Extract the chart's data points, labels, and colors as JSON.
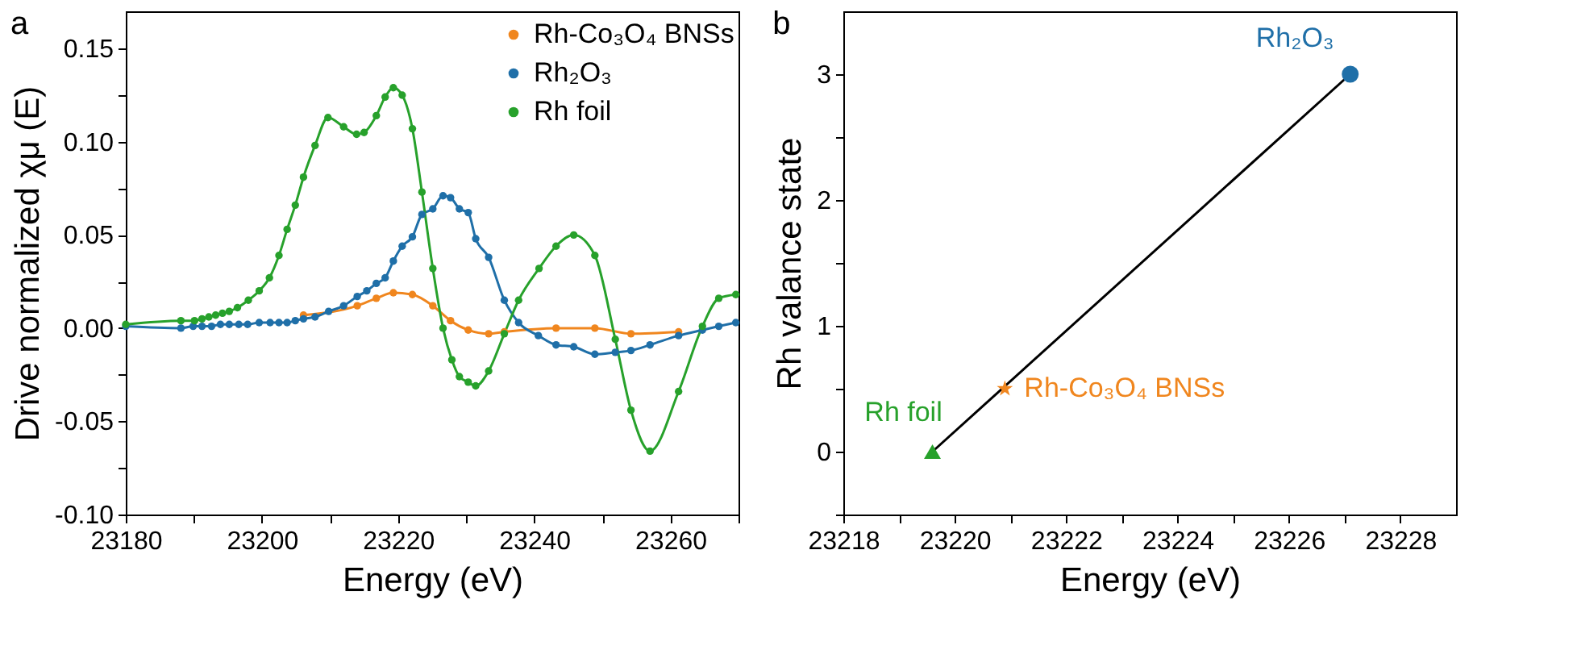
{
  "chart_data": [
    {
      "type": "line",
      "title": "a",
      "xlabel": "Energy (eV)",
      "ylabel": "Drive normalized χμ (E)",
      "xlim": [
        23180,
        23270
      ],
      "ylim": [
        -0.1,
        0.17
      ],
      "marker": "circle",
      "line_style": "solid",
      "legend": "top right",
      "xticks": [
        23180,
        {
          "value": 23190,
          "label": null
        },
        23200,
        {
          "value": 23210,
          "label": null
        },
        23220,
        {
          "value": 23230,
          "label": null
        },
        23240,
        {
          "value": 23250,
          "label": null
        },
        23260,
        {
          "value": 23270,
          "label": null
        }
      ],
      "yticks": [
        {
          "value": -0.1,
          "label": "-0.10"
        },
        {
          "value": -0.075,
          "label": null
        },
        {
          "value": -0.05,
          "label": "-0.05"
        },
        {
          "value": -0.025,
          "label": null
        },
        {
          "value": 0,
          "label": "0.00"
        },
        {
          "value": 0.025,
          "label": null
        },
        {
          "value": 0.05,
          "label": "0.05"
        },
        {
          "value": 0.075,
          "label": null
        },
        {
          "value": 0.1,
          "label": "0.10"
        },
        {
          "value": 0.125,
          "label": null
        },
        {
          "value": 0.15,
          "label": "0.15"
        }
      ],
      "series": [
        {
          "name": "Rh-Co₃O₄ BNSs",
          "color": "#f0861e",
          "x": [
            23206.1,
            23214.0,
            23216.8,
            23219.3,
            23222.1,
            23225.1,
            23227.7,
            23230.3,
            23233.3,
            23235.6,
            23243.2,
            23248.9,
            23254.2,
            23261.2
          ],
          "values": [
            0.007,
            0.012,
            0.016,
            0.019,
            0.018,
            0.012,
            0.004,
            -0.001,
            -0.003,
            -0.002,
            0,
            0,
            -0.003,
            -0.002
          ]
        },
        {
          "name": "Rh₂O₃",
          "color": "#1f6fa8",
          "x": [
            23180,
            23188.1,
            23189.9,
            23191.2,
            23192.6,
            23193.9,
            23195.2,
            23196.6,
            23197.9,
            23199.6,
            23201.2,
            23202.5,
            23203.7,
            23204.9,
            23206.1,
            23207.8,
            23209.8,
            23212.0,
            23214.0,
            23215.4,
            23216.8,
            23218.1,
            23219.3,
            23220.6,
            23222.1,
            23223.5,
            23225.1,
            23226.6,
            23227.7,
            23229.0,
            23230.3,
            23231.4,
            23233.3,
            23235.6,
            23237.7,
            23240.6,
            23243.2,
            23245.8,
            23248.9,
            23251.9,
            23254.2,
            23257.0,
            23261.2,
            23264.7,
            23267.1,
            23269.6
          ],
          "values": [
            0.001,
            0,
            0.001,
            0.001,
            0.001,
            0.002,
            0.002,
            0.002,
            0.002,
            0.003,
            0.003,
            0.003,
            0.003,
            0.004,
            0.005,
            0.006,
            0.009,
            0.012,
            0.017,
            0.02,
            0.024,
            0.027,
            0.036,
            0.044,
            0.049,
            0.061,
            0.064,
            0.071,
            0.07,
            0.064,
            0.062,
            0.048,
            0.038,
            0.015,
            0.003,
            -0.004,
            -0.009,
            -0.01,
            -0.014,
            -0.013,
            -0.012,
            -0.009,
            -0.004,
            -0.001,
            0.001,
            0.003
          ]
        },
        {
          "name": "Rh foil",
          "color": "#27a12b",
          "x": [
            23180,
            23188.1,
            23190.1,
            23191.2,
            23192.2,
            23193.2,
            23194.2,
            23195.2,
            23196.4,
            23198.0,
            23199.6,
            23201.1,
            23202.5,
            23203.7,
            23204.9,
            23206.1,
            23207.8,
            23209.7,
            23212.0,
            23213.9,
            23215.0,
            23216.8,
            23218.1,
            23219.3,
            23220.6,
            23222.1,
            23223.5,
            23225.1,
            23226.6,
            23227.9,
            23229.0,
            23230.3,
            23231.4,
            23233.3,
            23235.6,
            23237.7,
            23240.7,
            23243.2,
            23245.8,
            23248.9,
            23251.9,
            23254.2,
            23257.0,
            23261.2,
            23264.7,
            23267.1,
            23269.6
          ],
          "values": [
            0.002,
            0.004,
            0.004,
            0.005,
            0.006,
            0.007,
            0.008,
            0.009,
            0.011,
            0.015,
            0.02,
            0.027,
            0.039,
            0.053,
            0.066,
            0.081,
            0.098,
            0.113,
            0.108,
            0.104,
            0.105,
            0.114,
            0.124,
            0.129,
            0.125,
            0.107,
            0.073,
            0.032,
            0,
            -0.017,
            -0.026,
            -0.029,
            -0.031,
            -0.023,
            -0.003,
            0.015,
            0.032,
            0.044,
            0.05,
            0.039,
            -0.006,
            -0.044,
            -0.066,
            -0.034,
            0.001,
            0.016,
            0.018
          ]
        }
      ]
    },
    {
      "type": "scatter",
      "title": "b",
      "xlabel": "Energy (eV)",
      "ylabel": "Rh valance state",
      "xlim": [
        23218,
        23229
      ],
      "ylim": [
        -0.5,
        3.5
      ],
      "legend": false,
      "xticks": [
        23218,
        {
          "value": 23219,
          "label": null
        },
        23220,
        {
          "value": 23221,
          "label": null
        },
        23222,
        {
          "value": 23223,
          "label": null
        },
        23224,
        {
          "value": 23225,
          "label": null
        },
        23226,
        {
          "value": 23227,
          "label": null
        },
        23228
      ],
      "yticks": [
        {
          "value": -0.5,
          "label": null
        },
        0,
        {
          "value": 0.5,
          "label": null
        },
        1,
        {
          "value": 1.5,
          "label": null
        },
        2,
        {
          "value": 2.5,
          "label": null
        },
        3
      ],
      "series": [
        {
          "type": "line",
          "color": "#000000",
          "line_style": "solid",
          "x": [
            23219.6,
            23227.1
          ],
          "values": [
            0,
            3
          ]
        },
        {
          "name": "Rh foil",
          "color": "#27a12b",
          "marker": "triangle",
          "x": [
            23219.6
          ],
          "values": [
            0
          ]
        },
        {
          "name": "Rh-Co₃O₄ BNSs",
          "color": "#f0861e",
          "marker": "star",
          "x": [
            23220.9
          ],
          "values": [
            0.5
          ]
        },
        {
          "name": "Rh₂O₃",
          "color": "#1f6fa8",
          "marker": "circle",
          "x": [
            23227.1
          ],
          "values": [
            3
          ]
        }
      ]
    }
  ]
}
